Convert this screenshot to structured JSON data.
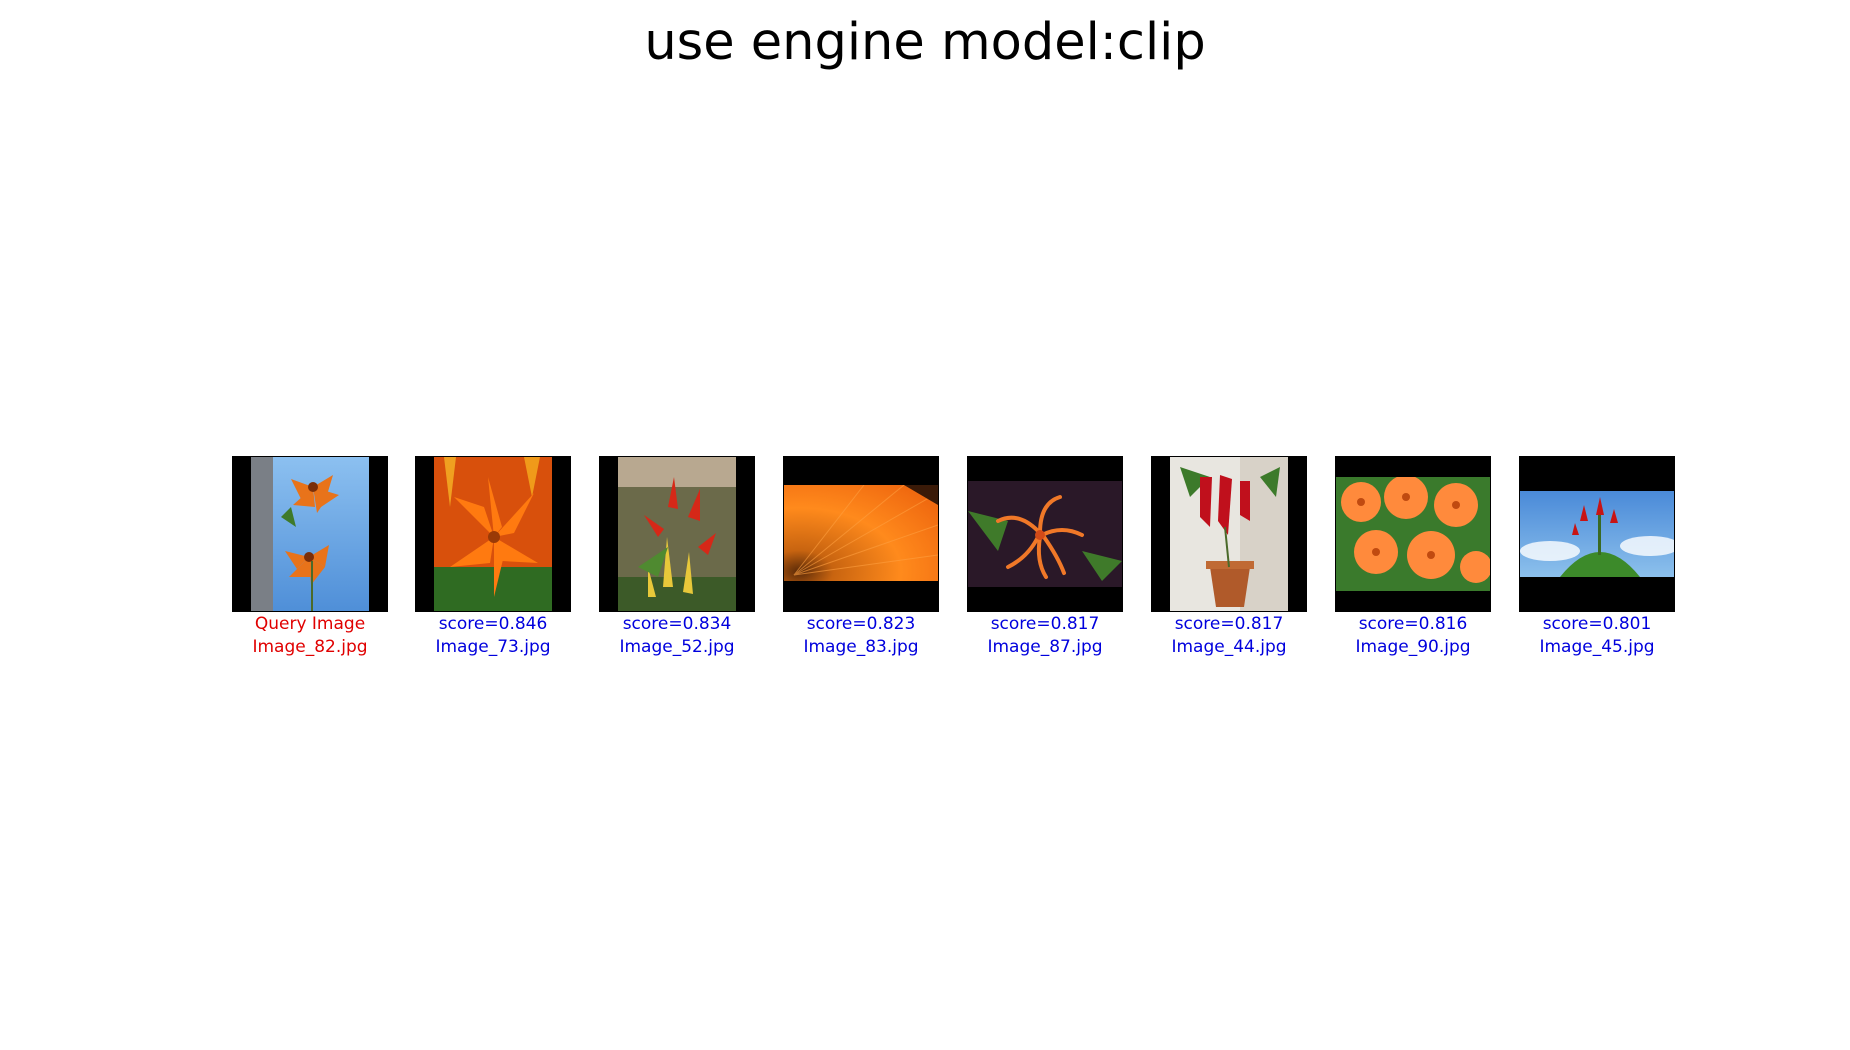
{
  "title": "use engine model:clip",
  "colors": {
    "query_caption": "#e00000",
    "result_caption": "#0000dd",
    "thumb_background": "#000000"
  },
  "query": {
    "label": "Query Image",
    "filename": "Image_82.jpg",
    "photo": "orange tiger lily flowers against blue sky"
  },
  "results": [
    {
      "score": "score=0.846",
      "filename": "Image_73.jpg",
      "photo": "orange lily bloom with buds"
    },
    {
      "score": "score=0.834",
      "filename": "Image_52.jpg",
      "photo": "red and yellow torch-lily plants in garden"
    },
    {
      "score": "score=0.823",
      "filename": "Image_83.jpg",
      "photo": "close-up of orange gerbera petals"
    },
    {
      "score": "score=0.817",
      "filename": "Image_87.jpg",
      "photo": "orange honeysuckle flower cluster"
    },
    {
      "score": "score=0.817",
      "filename": "Image_44.jpg",
      "photo": "red pendant flowers in a pot"
    },
    {
      "score": "score=0.816",
      "filename": "Image_90.jpg",
      "photo": "cluster of orange lilies"
    },
    {
      "score": "score=0.801",
      "filename": "Image_45.jpg",
      "photo": "red buds against blue sky"
    }
  ]
}
